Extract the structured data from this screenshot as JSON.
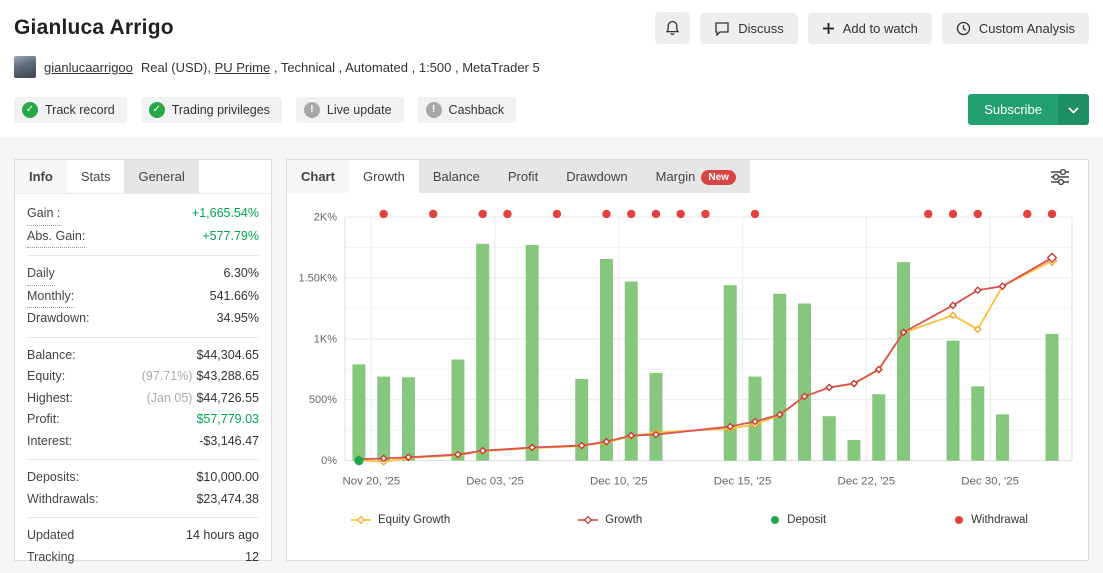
{
  "header": {
    "title": "Gianluca Arrigo",
    "actions": [
      {
        "icon": "discuss-icon",
        "label": "Discuss"
      },
      {
        "icon": "plus-icon",
        "label": "Add to watch"
      },
      {
        "icon": "clock-icon",
        "label": "Custom Analysis"
      }
    ],
    "account": {
      "username": "gianlucaarrigoo",
      "meta_before": "Real (USD), ",
      "broker_link": "PU Prime",
      "meta_after": " , Technical , Automated , 1:500 , MetaTrader 5"
    },
    "badges": [
      {
        "label": "Track record",
        "status": "ok"
      },
      {
        "label": "Trading privileges",
        "status": "ok"
      },
      {
        "label": "Live update",
        "status": "na"
      },
      {
        "label": "Cashback",
        "status": "na"
      }
    ],
    "subscribe_label": "Subscribe"
  },
  "stats_panel": {
    "tabs": [
      {
        "label": "Info",
        "active": false
      },
      {
        "label": "Stats",
        "active": true
      },
      {
        "label": "General",
        "active": false
      }
    ],
    "groups": [
      [
        {
          "label": "Gain :",
          "value": "+1,665.54%",
          "green": true,
          "dotted": true
        },
        {
          "label": "Abs. Gain:",
          "value": "+577.79%",
          "green": true,
          "dotted": true
        }
      ],
      [
        {
          "label": "Daily",
          "value": "6.30%",
          "dotted": true
        },
        {
          "label": "Monthly:",
          "value": "541.66%",
          "dotted": true
        },
        {
          "label": "Drawdown:",
          "value": "34.95%"
        }
      ],
      [
        {
          "label": "Balance:",
          "value": "$44,304.65"
        },
        {
          "label": "Equity:",
          "prefix": "(97.71%)",
          "value": "$43,288.65"
        },
        {
          "label": "Highest:",
          "prefix": "(Jan 05)",
          "value": "$44,726.55"
        },
        {
          "label": "Profit:",
          "value": "$57,779.03",
          "green": true
        },
        {
          "label": "Interest:",
          "value": "-$3,146.47"
        }
      ],
      [
        {
          "label": "Deposits:",
          "value": "$10,000.00"
        },
        {
          "label": "Withdrawals:",
          "value": "$23,474.38"
        }
      ],
      [
        {
          "label": "Updated",
          "value": "14 hours ago"
        },
        {
          "label": "Tracking",
          "value": "12"
        }
      ]
    ]
  },
  "chart_panel": {
    "tabs": [
      {
        "label": "Chart",
        "active": false
      },
      {
        "label": "Growth",
        "active": true
      },
      {
        "label": "Balance",
        "active": false
      },
      {
        "label": "Profit",
        "active": false
      },
      {
        "label": "Drawdown",
        "active": false
      },
      {
        "label": "Margin",
        "active": false,
        "badge": "New"
      }
    ]
  },
  "chart_data": {
    "type": "bar",
    "title": "Growth",
    "ylim": [
      0,
      2000
    ],
    "days_span": 28,
    "y_ticks": [
      {
        "v": 0,
        "label": "0%"
      },
      {
        "v": 500,
        "label": "500%"
      },
      {
        "v": 1000,
        "label": "1K%"
      },
      {
        "v": 1500,
        "label": "1.50K%"
      },
      {
        "v": 2000,
        "label": "2K%"
      }
    ],
    "x_ticks": [
      {
        "day": 0.5,
        "label": "Nov 20, '25"
      },
      {
        "day": 5.5,
        "label": "Dec 03, '25"
      },
      {
        "day": 10.5,
        "label": "Dec 10, '25"
      },
      {
        "day": 15.5,
        "label": "Dec 15, '25"
      },
      {
        "day": 20.5,
        "label": "Dec 22, '25"
      },
      {
        "day": 25.5,
        "label": "Dec 30, '25"
      }
    ],
    "bars": {
      "name": "Daily gain %",
      "color": "#85c77d",
      "points": [
        [
          0,
          790
        ],
        [
          1,
          690
        ],
        [
          2,
          685
        ],
        [
          4,
          830
        ],
        [
          5,
          1780
        ],
        [
          7,
          1770
        ],
        [
          9,
          670
        ],
        [
          10,
          1655
        ],
        [
          11,
          1470
        ],
        [
          12,
          720
        ],
        [
          15,
          1440
        ],
        [
          16,
          690
        ],
        [
          17,
          1370
        ],
        [
          18,
          1290
        ],
        [
          19,
          365
        ],
        [
          20,
          170
        ],
        [
          21,
          545
        ],
        [
          22,
          1630
        ],
        [
          24,
          985
        ],
        [
          25,
          610
        ],
        [
          26,
          380
        ],
        [
          28,
          1040
        ]
      ]
    },
    "series": [
      {
        "name": "Equity Growth",
        "color": "#fcbf3a",
        "marker_color": "#eda920",
        "points": [
          [
            0,
            5
          ],
          [
            1,
            -10
          ],
          [
            2,
            22
          ],
          [
            4,
            45
          ],
          [
            5,
            78
          ],
          [
            7,
            103
          ],
          [
            9,
            120
          ],
          [
            10,
            150
          ],
          [
            11,
            200
          ],
          [
            12,
            231
          ],
          [
            15,
            263
          ],
          [
            16,
            296
          ],
          [
            17,
            375
          ],
          [
            18,
            525
          ],
          [
            19,
            600
          ],
          [
            20,
            630
          ],
          [
            21,
            745
          ],
          [
            22,
            1050
          ],
          [
            24,
            1193
          ],
          [
            25,
            1078
          ],
          [
            26,
            1432
          ],
          [
            28,
            1640
          ]
        ]
      },
      {
        "name": "Growth",
        "color": "#d9534f",
        "marker_color": "#c9302c",
        "points": [
          [
            0,
            12
          ],
          [
            1,
            18
          ],
          [
            2,
            28
          ],
          [
            4,
            50
          ],
          [
            5,
            82
          ],
          [
            7,
            108
          ],
          [
            9,
            124
          ],
          [
            10,
            156
          ],
          [
            11,
            206
          ],
          [
            12,
            214
          ],
          [
            15,
            280
          ],
          [
            16,
            321
          ],
          [
            17,
            378
          ],
          [
            18,
            527
          ],
          [
            19,
            601
          ],
          [
            20,
            634
          ],
          [
            21,
            749
          ],
          [
            22,
            1053
          ],
          [
            24,
            1275
          ],
          [
            25,
            1399
          ],
          [
            26,
            1432
          ],
          [
            28,
            1665
          ]
        ]
      }
    ],
    "deposits": {
      "name": "Deposit",
      "color": "#1ba94c",
      "points": [
        [
          0,
          0
        ]
      ]
    },
    "withdrawals": {
      "name": "Withdrawal",
      "color": "#e2423d",
      "days": [
        1,
        3,
        5,
        6,
        8,
        10,
        11,
        12,
        13,
        14,
        16,
        23,
        24,
        25,
        27,
        28
      ]
    },
    "legend": [
      {
        "label": "Equity Growth",
        "type": "line",
        "color": "#fcbf3a",
        "marker": "#eda920"
      },
      {
        "label": "Growth",
        "type": "line",
        "color": "#d9534f",
        "marker": "#c9302c"
      },
      {
        "label": "Deposit",
        "type": "dot",
        "color": "#1ba94c"
      },
      {
        "label": "Withdrawal",
        "type": "dot",
        "color": "#e2423d"
      }
    ]
  }
}
